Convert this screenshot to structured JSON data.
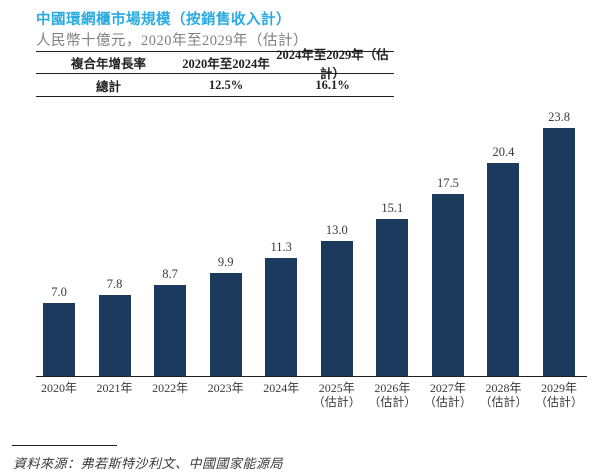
{
  "header": {
    "title": "中國環網櫃市場規模（按銷售收入計）",
    "subtitle": "人民幣十億元，2020年至2029年（估計）"
  },
  "cagr_table": {
    "headers": [
      "複合年增長率",
      "2020年至2024年",
      "2024年至2029年（估計）"
    ],
    "rows": [
      [
        "總計",
        "12.5%",
        "16.1%"
      ]
    ]
  },
  "chart_data": {
    "type": "bar",
    "title": "中國環網櫃市場規模（按銷售收入計）",
    "unit_label": "人民幣十億元",
    "categories": [
      "2020年",
      "2021年",
      "2022年",
      "2023年",
      "2024年",
      "2025年\n（估計）",
      "2026年\n（估計）",
      "2027年\n（估計）",
      "2028年\n（估計）",
      "2029年\n（估計）"
    ],
    "values": [
      7.0,
      7.8,
      8.7,
      9.9,
      11.3,
      13.0,
      15.1,
      17.5,
      20.4,
      23.8
    ],
    "xlabel": "",
    "ylabel": "",
    "ylim": [
      0,
      26
    ],
    "grid": false,
    "legend": false,
    "bar_color": "#1b3a5e",
    "value_label_color": "#3a3a3a",
    "axis_color": "#231f20"
  },
  "colors": {
    "title_accent": "#29aae1",
    "subtitle_gray": "#7f7f7f",
    "text_dark": "#231f20"
  },
  "footer": {
    "source": "資料來源：弗若斯特沙利文、中國國家能源局"
  }
}
